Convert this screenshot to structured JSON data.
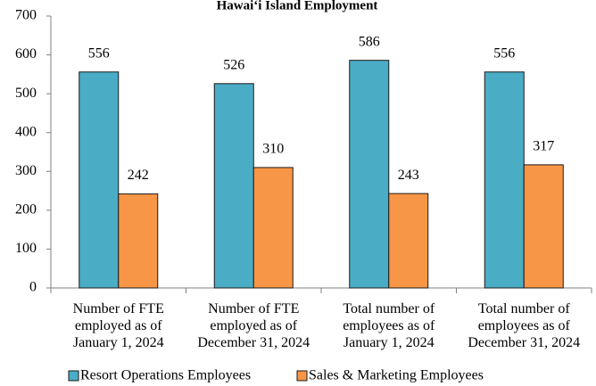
{
  "chart_data": {
    "type": "bar",
    "title": "Hawaiʻi Island Employment",
    "categories": [
      "Number of FTE\nemployed as of\nJanuary 1, 2024",
      "Number of FTE\nemployed as of\nDecember 31, 2024",
      "Total number of\nemployees as of\nJanuary 1, 2024",
      "Total number of\nemployees as of\nDecember 31, 2024"
    ],
    "series": [
      {
        "name": "Resort Operations Employees",
        "color": "#4bacc6",
        "values": [
          556,
          526,
          586,
          556
        ]
      },
      {
        "name": "Sales & Marketing Employees",
        "color": "#f79646",
        "values": [
          242,
          310,
          243,
          317
        ]
      }
    ],
    "ylim": [
      0,
      700
    ],
    "yticks": [
      0,
      100,
      200,
      300,
      400,
      500,
      600,
      700
    ],
    "grid": false,
    "legend": "bottom"
  }
}
